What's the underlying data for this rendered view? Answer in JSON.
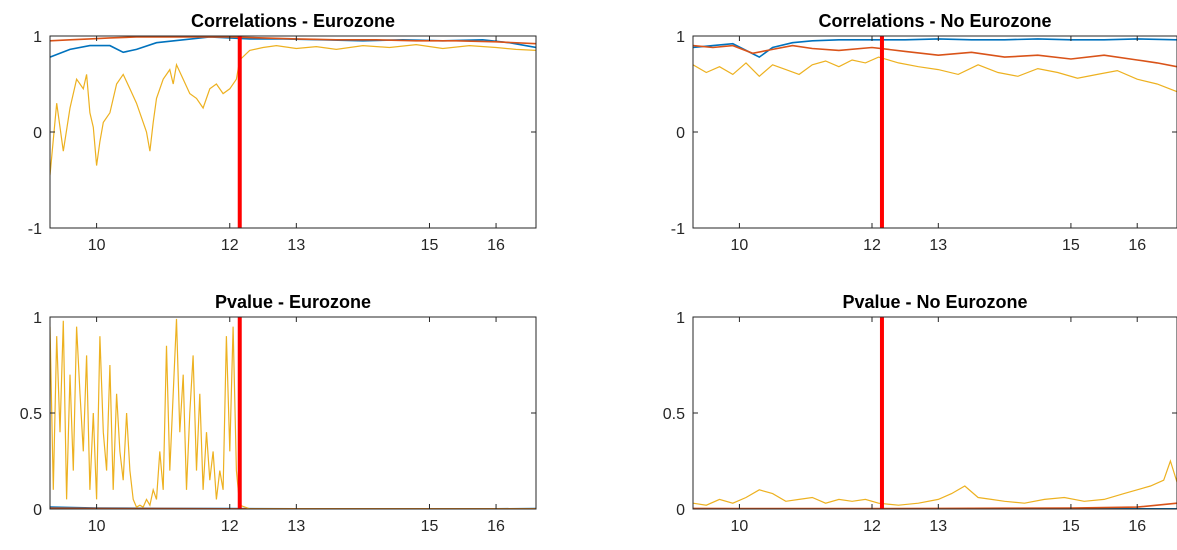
{
  "chart_data": [
    {
      "type": "line",
      "title": "Correlations - Eurozone",
      "xlim": [
        9.3,
        16.6
      ],
      "ylim": [
        -1,
        1
      ],
      "xticks": [
        10,
        12,
        13,
        15,
        16
      ],
      "yticks": [
        -1,
        0,
        1
      ],
      "vline": {
        "x": 12.15,
        "color": "#ff0000"
      },
      "series": [
        {
          "color": "#0072bd",
          "x": [
            9.3,
            9.6,
            9.9,
            10.2,
            10.4,
            10.6,
            10.9,
            11.3,
            11.7,
            12.0,
            12.3,
            12.8,
            13.4,
            14.0,
            14.6,
            15.2,
            15.8,
            16.2,
            16.6
          ],
          "y": [
            0.78,
            0.86,
            0.9,
            0.9,
            0.83,
            0.86,
            0.93,
            0.96,
            0.99,
            0.98,
            0.97,
            0.97,
            0.96,
            0.95,
            0.96,
            0.95,
            0.96,
            0.93,
            0.88
          ]
        },
        {
          "color": "#d95319",
          "x": [
            9.3,
            9.6,
            9.9,
            10.2,
            10.6,
            11.0,
            11.5,
            12.0,
            12.5,
            13.0,
            13.6,
            14.2,
            14.8,
            15.4,
            16.0,
            16.6
          ],
          "y": [
            0.95,
            0.96,
            0.97,
            0.98,
            0.99,
            0.99,
            0.99,
            0.99,
            0.98,
            0.97,
            0.96,
            0.96,
            0.95,
            0.95,
            0.94,
            0.92
          ]
        },
        {
          "color": "#edb120",
          "x": [
            9.3,
            9.4,
            9.5,
            9.6,
            9.7,
            9.75,
            9.8,
            9.85,
            9.9,
            9.95,
            10.0,
            10.05,
            10.1,
            10.2,
            10.3,
            10.4,
            10.5,
            10.6,
            10.7,
            10.75,
            10.8,
            10.85,
            10.9,
            11.0,
            11.1,
            11.15,
            11.2,
            11.3,
            11.4,
            11.5,
            11.6,
            11.7,
            11.8,
            11.9,
            12.0,
            12.1,
            12.15,
            12.3,
            12.5,
            12.7,
            13.0,
            13.3,
            13.6,
            14.0,
            14.4,
            14.8,
            15.2,
            15.6,
            16.0,
            16.3,
            16.6
          ],
          "y": [
            -0.45,
            0.3,
            -0.2,
            0.25,
            0.55,
            0.5,
            0.45,
            0.6,
            0.2,
            0.05,
            -0.35,
            -0.1,
            0.1,
            0.2,
            0.5,
            0.6,
            0.45,
            0.3,
            0.1,
            0.0,
            -0.2,
            0.1,
            0.35,
            0.55,
            0.65,
            0.5,
            0.7,
            0.55,
            0.4,
            0.35,
            0.25,
            0.45,
            0.5,
            0.4,
            0.45,
            0.55,
            0.75,
            0.85,
            0.88,
            0.9,
            0.87,
            0.89,
            0.86,
            0.9,
            0.88,
            0.91,
            0.87,
            0.9,
            0.88,
            0.86,
            0.85
          ]
        }
      ]
    },
    {
      "type": "line",
      "title": "Correlations - No Eurozone",
      "xlim": [
        9.3,
        16.6
      ],
      "ylim": [
        -1,
        1
      ],
      "xticks": [
        10,
        12,
        13,
        15,
        16
      ],
      "yticks": [
        -1,
        0,
        1
      ],
      "vline": {
        "x": 12.15,
        "color": "#ff0000"
      },
      "series": [
        {
          "color": "#0072bd",
          "x": [
            9.3,
            9.6,
            9.9,
            10.1,
            10.3,
            10.5,
            10.8,
            11.1,
            11.5,
            12.0,
            12.5,
            13.0,
            13.5,
            14.0,
            14.5,
            15.0,
            15.5,
            16.0,
            16.6
          ],
          "y": [
            0.88,
            0.9,
            0.92,
            0.85,
            0.78,
            0.88,
            0.93,
            0.95,
            0.96,
            0.96,
            0.96,
            0.97,
            0.96,
            0.96,
            0.97,
            0.96,
            0.96,
            0.97,
            0.96
          ]
        },
        {
          "color": "#d95319",
          "x": [
            9.3,
            9.6,
            9.9,
            10.2,
            10.5,
            10.8,
            11.1,
            11.5,
            12.0,
            12.5,
            13.0,
            13.5,
            14.0,
            14.5,
            15.0,
            15.5,
            16.0,
            16.3,
            16.6
          ],
          "y": [
            0.9,
            0.88,
            0.9,
            0.82,
            0.86,
            0.9,
            0.87,
            0.85,
            0.88,
            0.84,
            0.8,
            0.83,
            0.78,
            0.8,
            0.76,
            0.8,
            0.75,
            0.72,
            0.68
          ]
        },
        {
          "color": "#edb120",
          "x": [
            9.3,
            9.5,
            9.7,
            9.9,
            10.1,
            10.3,
            10.5,
            10.7,
            10.9,
            11.1,
            11.3,
            11.5,
            11.7,
            11.9,
            12.1,
            12.4,
            12.7,
            13.0,
            13.3,
            13.6,
            13.9,
            14.2,
            14.5,
            14.8,
            15.1,
            15.4,
            15.7,
            16.0,
            16.3,
            16.6
          ],
          "y": [
            0.7,
            0.62,
            0.68,
            0.6,
            0.72,
            0.58,
            0.7,
            0.65,
            0.6,
            0.7,
            0.74,
            0.68,
            0.75,
            0.72,
            0.78,
            0.72,
            0.68,
            0.65,
            0.6,
            0.7,
            0.62,
            0.58,
            0.66,
            0.62,
            0.56,
            0.6,
            0.64,
            0.55,
            0.5,
            0.42
          ]
        }
      ]
    },
    {
      "type": "line",
      "title": "Pvalue - Eurozone",
      "xlim": [
        9.3,
        16.6
      ],
      "ylim": [
        0,
        1
      ],
      "xticks": [
        10,
        12,
        13,
        15,
        16
      ],
      "yticks": [
        0,
        0.5,
        1
      ],
      "vline": {
        "x": 12.15,
        "color": "#ff0000"
      },
      "series": [
        {
          "color": "#0072bd",
          "x": [
            9.3,
            10.0,
            11.0,
            12.0,
            13.0,
            14.0,
            15.0,
            16.0,
            16.6
          ],
          "y": [
            0.01,
            0.005,
            0.003,
            0.002,
            0.001,
            0.001,
            0.001,
            0.001,
            0.002
          ]
        },
        {
          "color": "#d95319",
          "x": [
            9.3,
            10.0,
            11.0,
            12.0,
            13.0,
            14.0,
            15.0,
            16.0,
            16.6
          ],
          "y": [
            0.004,
            0.003,
            0.002,
            0.001,
            0.001,
            0.001,
            0.001,
            0.001,
            0.001
          ]
        },
        {
          "color": "#edb120",
          "x": [
            9.3,
            9.35,
            9.4,
            9.45,
            9.5,
            9.55,
            9.6,
            9.65,
            9.7,
            9.75,
            9.8,
            9.85,
            9.9,
            9.95,
            10.0,
            10.05,
            10.1,
            10.15,
            10.2,
            10.25,
            10.3,
            10.35,
            10.4,
            10.45,
            10.5,
            10.55,
            10.6,
            10.65,
            10.7,
            10.75,
            10.8,
            10.85,
            10.9,
            10.95,
            11.0,
            11.05,
            11.1,
            11.15,
            11.2,
            11.25,
            11.3,
            11.35,
            11.4,
            11.45,
            11.5,
            11.55,
            11.6,
            11.65,
            11.7,
            11.75,
            11.8,
            11.85,
            11.9,
            11.95,
            12.0,
            12.05,
            12.1,
            12.15,
            12.3,
            12.6,
            13.0,
            13.5,
            14.0,
            14.5,
            15.0,
            15.5,
            16.0,
            16.6
          ],
          "y": [
            0.95,
            0.1,
            0.9,
            0.4,
            0.98,
            0.05,
            0.7,
            0.2,
            0.95,
            0.6,
            0.3,
            0.8,
            0.1,
            0.5,
            0.05,
            0.9,
            0.4,
            0.2,
            0.75,
            0.1,
            0.6,
            0.3,
            0.15,
            0.5,
            0.2,
            0.05,
            0.01,
            0.02,
            0.01,
            0.05,
            0.02,
            0.1,
            0.05,
            0.3,
            0.1,
            0.85,
            0.2,
            0.6,
            0.99,
            0.4,
            0.7,
            0.1,
            0.5,
            0.8,
            0.2,
            0.6,
            0.1,
            0.4,
            0.15,
            0.3,
            0.05,
            0.2,
            0.1,
            0.9,
            0.3,
            0.95,
            0.2,
            0.02,
            0.001,
            0.001,
            0.001,
            0.001,
            0.001,
            0.001,
            0.001,
            0.001,
            0.001,
            0.001
          ]
        }
      ]
    },
    {
      "type": "line",
      "title": "Pvalue - No Eurozone",
      "xlim": [
        9.3,
        16.6
      ],
      "ylim": [
        0,
        1
      ],
      "xticks": [
        10,
        12,
        13,
        15,
        16
      ],
      "yticks": [
        0,
        0.5,
        1
      ],
      "vline": {
        "x": 12.15,
        "color": "#ff0000"
      },
      "series": [
        {
          "color": "#0072bd",
          "x": [
            9.3,
            10.0,
            11.0,
            12.0,
            13.0,
            14.0,
            15.0,
            16.0,
            16.6
          ],
          "y": [
            0.001,
            0.001,
            0.001,
            0.001,
            0.001,
            0.001,
            0.001,
            0.001,
            0.001
          ]
        },
        {
          "color": "#d95319",
          "x": [
            9.3,
            10.0,
            11.0,
            12.0,
            13.0,
            14.0,
            15.0,
            16.0,
            16.6
          ],
          "y": [
            0.003,
            0.002,
            0.002,
            0.002,
            0.003,
            0.004,
            0.005,
            0.01,
            0.03
          ]
        },
        {
          "color": "#edb120",
          "x": [
            9.3,
            9.5,
            9.7,
            9.9,
            10.1,
            10.3,
            10.5,
            10.7,
            10.9,
            11.1,
            11.3,
            11.5,
            11.7,
            11.9,
            12.1,
            12.4,
            12.7,
            13.0,
            13.2,
            13.4,
            13.6,
            13.8,
            14.0,
            14.3,
            14.6,
            14.9,
            15.2,
            15.5,
            15.8,
            16.0,
            16.2,
            16.4,
            16.5,
            16.6
          ],
          "y": [
            0.03,
            0.02,
            0.05,
            0.03,
            0.06,
            0.1,
            0.08,
            0.04,
            0.05,
            0.06,
            0.03,
            0.05,
            0.04,
            0.05,
            0.03,
            0.02,
            0.03,
            0.05,
            0.08,
            0.12,
            0.06,
            0.05,
            0.04,
            0.03,
            0.05,
            0.06,
            0.04,
            0.05,
            0.08,
            0.1,
            0.12,
            0.15,
            0.25,
            0.14
          ]
        }
      ]
    }
  ]
}
